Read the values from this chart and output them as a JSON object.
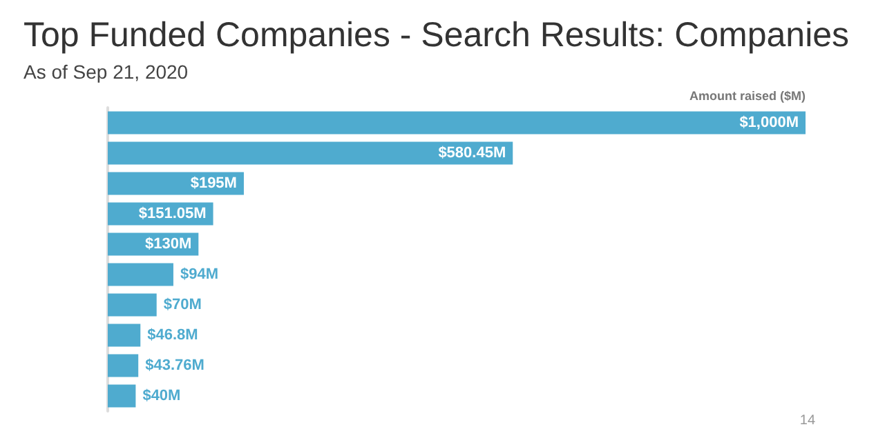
{
  "chart_data": {
    "type": "bar",
    "orientation": "horizontal",
    "title": "Top Funded Companies - Search Results: Companies",
    "subtitle": "As of Sep 21, 2020",
    "xlabel": "Amount raised ($M)",
    "categories": [
      null,
      null,
      null,
      null,
      null,
      null,
      null,
      null,
      null,
      null
    ],
    "values": [
      1000,
      580.45,
      195,
      151.05,
      130,
      94,
      70,
      46.8,
      43.76,
      40
    ],
    "value_labels": [
      "$1,000M",
      "$580.45M",
      "$195M",
      "$151.05M",
      "$130M",
      "$94M",
      "$70M",
      "$46.8M",
      "$43.76M",
      "$40M"
    ],
    "color": "#4fabcf",
    "annotations": [
      "14"
    ]
  }
}
